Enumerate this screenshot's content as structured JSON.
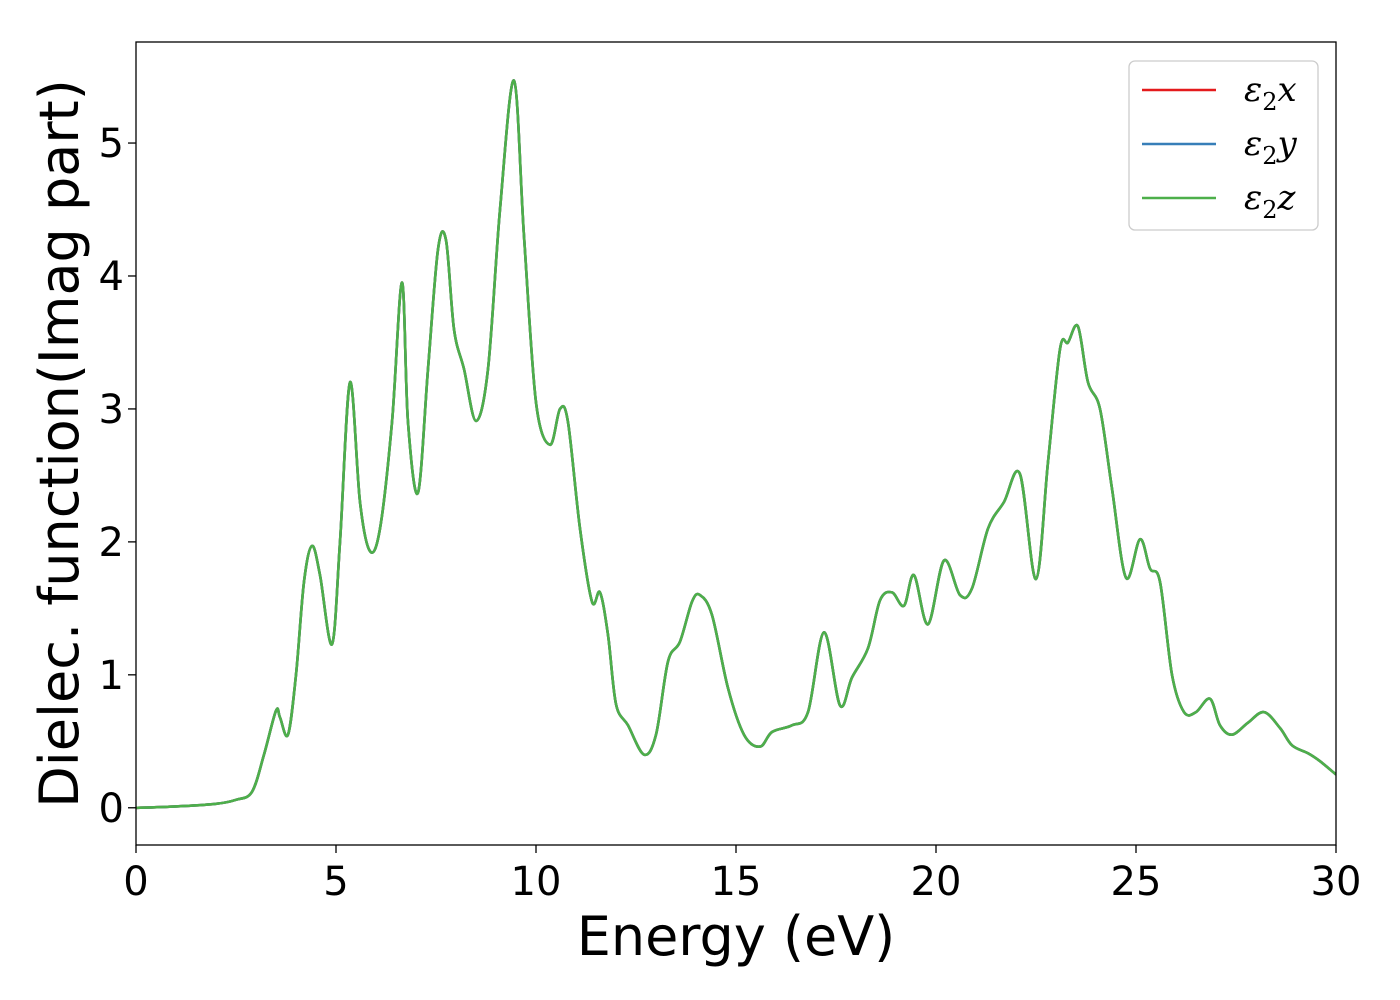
{
  "chart_data": {
    "type": "line",
    "xlabel": "Energy (eV)",
    "ylabel": "Dielec. function(Imag part)",
    "xlim": [
      0,
      30
    ],
    "ylim": [
      -0.28,
      5.76
    ],
    "xticks": [
      0,
      5,
      10,
      15,
      20,
      25,
      30
    ],
    "yticks": [
      0,
      1,
      2,
      3,
      4,
      5
    ],
    "grid": false,
    "legend_position": "top-right",
    "series": [
      {
        "name": "ε2x",
        "label_main": "ε",
        "label_sub": "2",
        "label_axis": "x",
        "color": "#e41a1c"
      },
      {
        "name": "ε2y",
        "label_main": "ε",
        "label_sub": "2",
        "label_axis": "y",
        "color": "#377eb8"
      },
      {
        "name": "ε2z",
        "label_main": "ε",
        "label_sub": "2",
        "label_axis": "z",
        "color": "#4daf4a"
      }
    ],
    "x": [
      0,
      1,
      2,
      2.5,
      2.9,
      3.2,
      3.5,
      3.6,
      3.8,
      4.0,
      4.2,
      4.4,
      4.6,
      4.9,
      5.1,
      5.35,
      5.6,
      5.85,
      6.1,
      6.4,
      6.65,
      6.8,
      7.05,
      7.3,
      7.55,
      7.75,
      7.95,
      8.2,
      8.5,
      8.8,
      9.1,
      9.45,
      9.7,
      10.0,
      10.35,
      10.6,
      10.8,
      11.1,
      11.4,
      11.6,
      11.8,
      12.0,
      12.3,
      12.7,
      13.0,
      13.3,
      13.6,
      13.9,
      14.1,
      14.4,
      14.8,
      15.2,
      15.6,
      15.9,
      16.4,
      16.8,
      17.2,
      17.6,
      17.9,
      18.3,
      18.6,
      18.9,
      19.2,
      19.45,
      19.8,
      20.2,
      20.6,
      20.9,
      21.3,
      21.7,
      22.1,
      22.5,
      22.8,
      23.1,
      23.3,
      23.55,
      23.8,
      24.1,
      24.4,
      24.75,
      25.1,
      25.35,
      25.6,
      25.9,
      26.2,
      26.5,
      26.85,
      27.1,
      27.4,
      27.8,
      28.2,
      28.6,
      28.9,
      29.3,
      29.6,
      30.0
    ],
    "values": [
      0.0,
      0.01,
      0.03,
      0.06,
      0.12,
      0.4,
      0.73,
      0.68,
      0.55,
      1.0,
      1.7,
      1.97,
      1.75,
      1.23,
      2.0,
      3.2,
      2.3,
      1.93,
      2.1,
      2.9,
      3.95,
      2.9,
      2.37,
      3.3,
      4.2,
      4.27,
      3.6,
      3.3,
      2.91,
      3.3,
      4.5,
      5.47,
      4.3,
      3.05,
      2.73,
      3.0,
      2.9,
      2.1,
      1.55,
      1.62,
      1.3,
      0.78,
      0.62,
      0.4,
      0.55,
      1.1,
      1.25,
      1.55,
      1.6,
      1.45,
      0.9,
      0.55,
      0.46,
      0.57,
      0.62,
      0.72,
      1.32,
      0.77,
      0.98,
      1.2,
      1.56,
      1.62,
      1.52,
      1.75,
      1.38,
      1.86,
      1.6,
      1.65,
      2.1,
      2.3,
      2.51,
      1.72,
      2.6,
      3.45,
      3.5,
      3.62,
      3.2,
      3.0,
      2.4,
      1.73,
      2.02,
      1.8,
      1.7,
      1.0,
      0.72,
      0.72,
      0.82,
      0.62,
      0.55,
      0.64,
      0.72,
      0.6,
      0.47,
      0.41,
      0.35,
      0.25
    ]
  }
}
